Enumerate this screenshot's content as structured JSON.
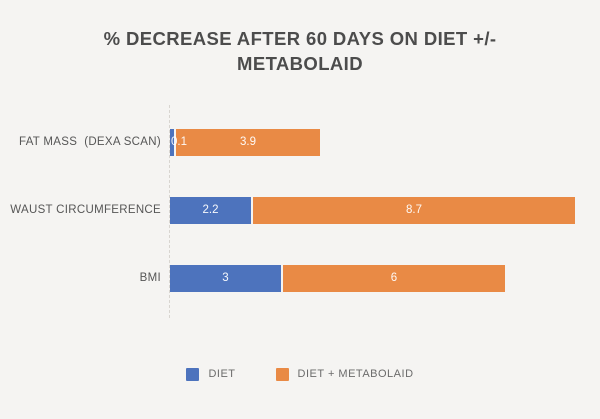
{
  "chart_data": {
    "type": "bar",
    "orientation": "horizontal",
    "stacked": true,
    "title": "% DECREASE AFTER 60 DAYS ON DIET +/- METABOLAID",
    "categories": [
      "FAT MASS  (DEXA SCAN)",
      "WAUST CIRCUMFERENCE",
      "BMI"
    ],
    "series": [
      {
        "name": "DIET",
        "color": "#4d73bd",
        "values": [
          0.1,
          2.2,
          3
        ]
      },
      {
        "name": "DIET + METABOLAID",
        "color": "#e98a45",
        "values": [
          3.9,
          8.7,
          6
        ]
      }
    ],
    "xlim": [
      0,
      11
    ],
    "value_labels": "inside-white",
    "legend_position": "bottom",
    "grid": "dashed-baseline-only",
    "background_color": "#f5f4f2",
    "title_color": "#4c4c4c",
    "label_color": "#565656"
  }
}
